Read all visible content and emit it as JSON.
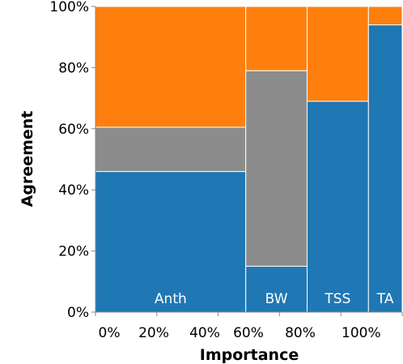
{
  "chart_data": {
    "type": "mosaic",
    "xlabel": "Importance",
    "ylabel": "Agreement",
    "x_ticks": [
      "0%",
      "20%",
      "40%",
      "60%",
      "80%",
      "100%"
    ],
    "y_ticks": [
      "0%",
      "20%",
      "40%",
      "60%",
      "80%",
      "100%"
    ],
    "xlim": [
      0,
      1
    ],
    "ylim": [
      0,
      1
    ],
    "grid": false,
    "categories": [
      "Anth",
      "BW",
      "TSS",
      "TA"
    ],
    "widths": [
      0.49,
      0.2,
      0.2,
      0.11
    ],
    "segment_colors": [
      "#1f77b4",
      "#8c8c8c",
      "#ff7f0e"
    ],
    "shares": [
      [
        0.46,
        0.145,
        0.395
      ],
      [
        0.15,
        0.64,
        0.21
      ],
      [
        0.69,
        0.0,
        0.31
      ],
      [
        0.94,
        0.0,
        0.06
      ]
    ]
  }
}
